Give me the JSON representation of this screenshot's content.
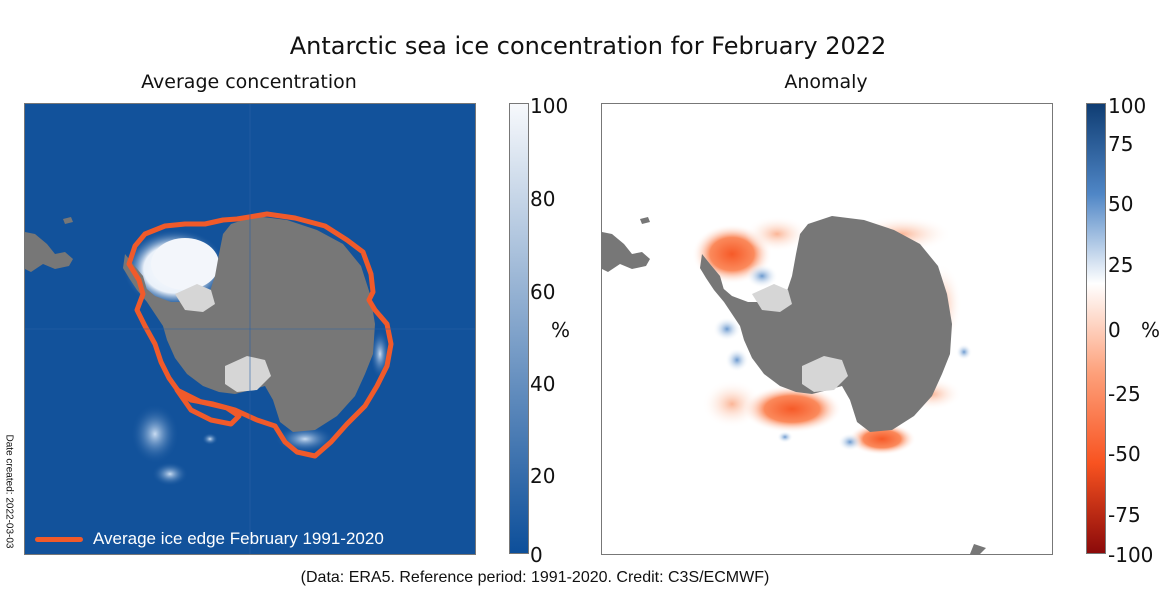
{
  "title": "Antarctic sea ice concentration for February 2022",
  "left_panel": {
    "subtitle": "Average concentration",
    "legend_label": "Average ice edge February 1991-2020",
    "legend_color": "#f05a2a",
    "ocean_color": "#12529b",
    "land_color": "#777777",
    "colorbar": {
      "ticks": [
        "100",
        "80",
        "60",
        "40",
        "20",
        "0"
      ],
      "unit": "%",
      "colors": [
        "#f7f9fc",
        "#0d4f9a"
      ]
    }
  },
  "right_panel": {
    "subtitle": "Anomaly",
    "land_color": "#777777",
    "colorbar": {
      "ticks": [
        "100",
        "75",
        "50",
        "25",
        "0",
        "-25",
        "-50",
        "-75",
        "-100"
      ],
      "unit": "%",
      "colors": [
        "#0f3d73",
        "#4f86c6",
        "#ffffff",
        "#fda07a",
        "#f85320",
        "#8b0a0a"
      ]
    }
  },
  "footer": "(Data: ERA5.  Reference period: 1991-2020.  Credit: C3S/ECMWF)",
  "date_created": "Date created: 2022-03-03"
}
